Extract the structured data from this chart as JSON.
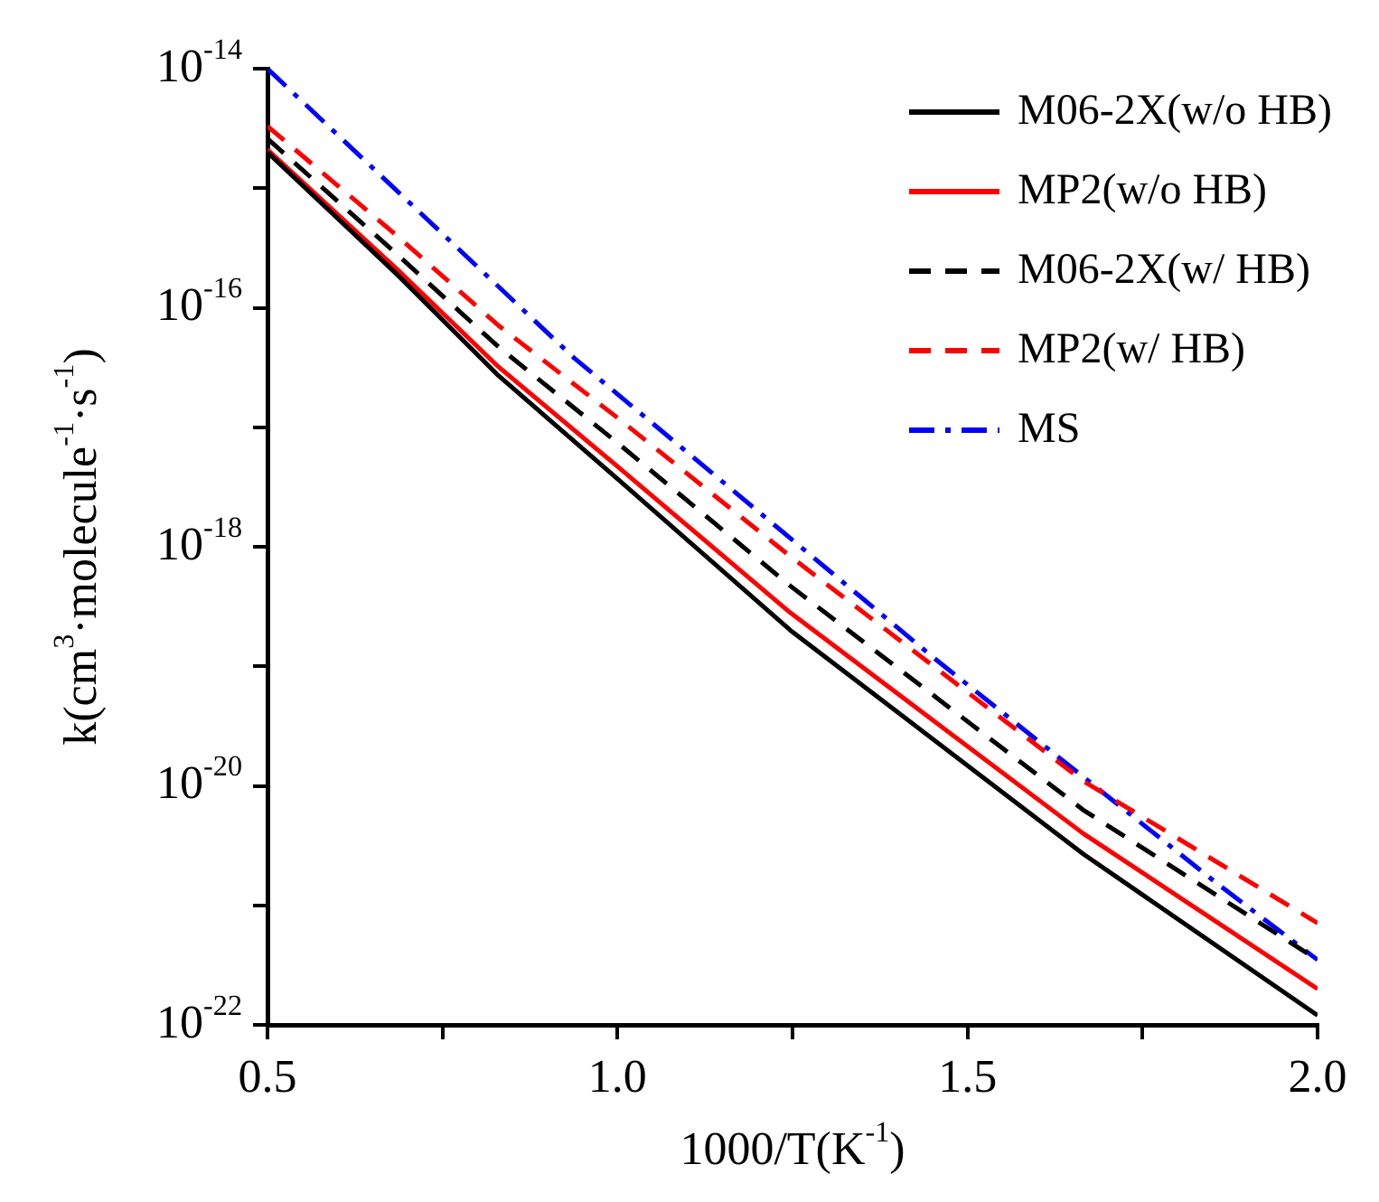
{
  "chart_data": {
    "type": "line",
    "x": [
      0.5,
      0.685,
      0.83,
      1.0,
      1.247,
      1.665,
      2.0
    ],
    "series": [
      {
        "name": "M06-2X(w/o HB)",
        "color": "#000000",
        "line_style": "solid",
        "values": [
          2e-15,
          1.9e-16,
          2.7e-17,
          3.7e-18,
          2e-19,
          2.7e-21,
          1.2e-22
        ]
      },
      {
        "name": "MP2(w/o HB)",
        "color": "#ff0000",
        "line_style": "solid",
        "values": [
          2.1e-15,
          2.1e-16,
          3.2e-17,
          4.7e-18,
          2.8e-19,
          4e-21,
          2e-22
        ]
      },
      {
        "name": "M06-2X(w/ HB)",
        "color": "#000000",
        "line_style": "dashed",
        "values": [
          2.6e-15,
          2.8e-16,
          4.7e-17,
          7.4e-18,
          4.7e-19,
          6.3e-21,
          3.5e-22
        ]
      },
      {
        "name": "MP2(w/ HB)",
        "color": "#ff0000",
        "line_style": "dashed",
        "values": [
          3.3e-15,
          4e-16,
          7.1e-17,
          1.2e-17,
          8.3e-19,
          1.1e-20,
          7.1e-22
        ]
      },
      {
        "name": "MS",
        "color": "#0000ff",
        "line_style": "dashdot",
        "x": [
          0.5,
          0.938,
          1.45,
          1.858,
          2.0
        ],
        "values": [
          1e-14,
          3.8e-17,
          1.2e-19,
          1.5e-21,
          3.5e-22
        ]
      }
    ],
    "xlabel": "1000/T(K$^{-1}$)",
    "ylabel": "k(cm$^{3}$·molecule$^{-1}$·s$^{-1}$)",
    "xlim": [
      0.5,
      2.0
    ],
    "xticks": [
      0.5,
      {
        "value": 0.75,
        "label": null
      },
      {
        "value": 1.0,
        "label": "1.0"
      },
      {
        "value": 1.25,
        "label": null
      },
      1.5,
      {
        "value": 1.75,
        "label": null
      },
      {
        "value": 2.0,
        "label": "2.0"
      }
    ],
    "ylim": [
      1e-22,
      1e-14
    ],
    "yticks": [
      {
        "value": 1e-22,
        "label": "10$^{-22}$"
      },
      {
        "value": 1e-21,
        "label": null
      },
      {
        "value": 1e-20,
        "label": "10$^{-20}$"
      },
      {
        "value": 1e-19,
        "label": null
      },
      {
        "value": 1e-18,
        "label": "10$^{-18}$"
      },
      {
        "value": 1e-17,
        "label": null
      },
      {
        "value": 1e-16,
        "label": "10$^{-16}$"
      },
      {
        "value": 1e-15,
        "label": null
      },
      {
        "value": 1e-14,
        "label": "10$^{-14}$"
      }
    ],
    "log": "y",
    "grid": false,
    "legend": "top right",
    "marker": "none"
  }
}
